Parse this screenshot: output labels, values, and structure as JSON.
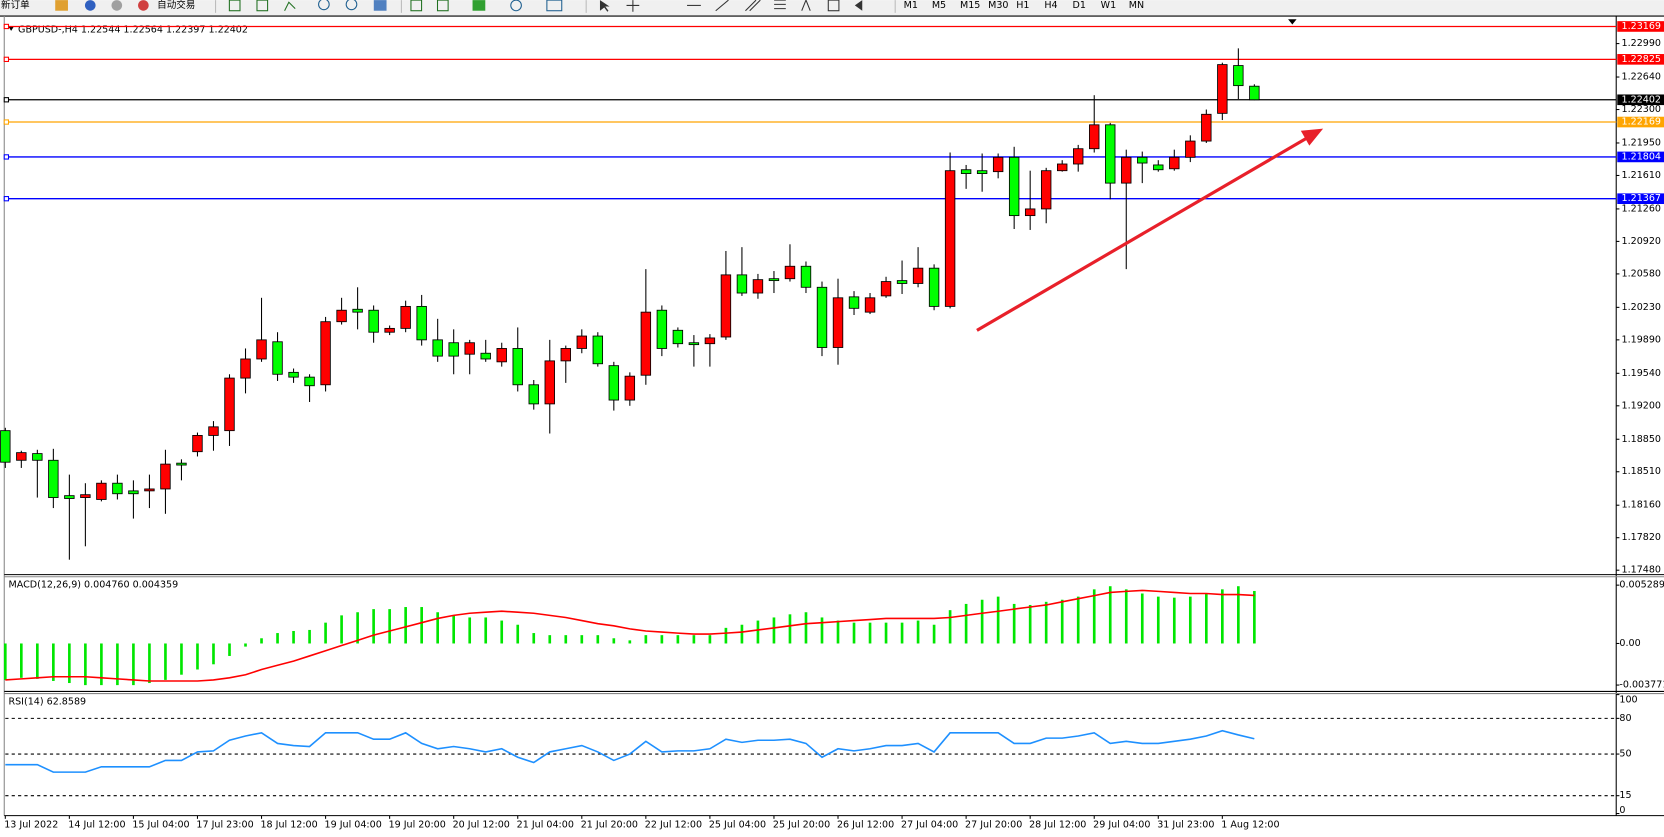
{
  "toolbar": {
    "new_order": "新订单",
    "auto_trading": "自动交易",
    "timeframes": [
      "M1",
      "M5",
      "M15",
      "M30",
      "H1",
      "H4",
      "D1",
      "W1",
      "MN"
    ]
  },
  "chart_data": [
    {
      "type": "candlestick",
      "title": "GBPUSD-,H4  1.22544 1.22564 1.22397 1.22402",
      "categories": [
        "13 Jul 2022",
        null,
        null,
        null,
        "14 Jul 12:00",
        null,
        null,
        null,
        "15 Jul 04:00",
        null,
        null,
        null,
        "17 Jul 23:00",
        null,
        null,
        null,
        "18 Jul 12:00",
        null,
        null,
        null,
        "19 Jul 04:00",
        null,
        null,
        null,
        "19 Jul 20:00",
        null,
        null,
        null,
        "20 Jul 12:00",
        null,
        null,
        null,
        "21 Jul 04:00",
        null,
        null,
        null,
        "21 Jul 20:00",
        null,
        null,
        null,
        "22 Jul 12:00",
        null,
        null,
        null,
        "25 Jul 04:00",
        null,
        null,
        null,
        "25 Jul 20:00",
        null,
        null,
        null,
        "26 Jul 12:00",
        null,
        null,
        null,
        "27 Jul 04:00",
        null,
        null,
        null,
        "27 Jul 20:00",
        null,
        null,
        null,
        "28 Jul 12:00",
        null,
        null,
        null,
        "29 Jul 04:00",
        null,
        null,
        null,
        "31 Jul 23:00",
        null,
        null,
        null,
        "1 Aug 12:00",
        null,
        null
      ],
      "open": [
        1.1894,
        1.1863,
        1.187,
        1.1863,
        1.1826,
        1.1824,
        1.1822,
        1.1839,
        1.1831,
        1.1831,
        1.1833,
        1.186,
        1.1872,
        1.1889,
        1.1894,
        1.1949,
        1.1969,
        1.1987,
        1.1955,
        1.195,
        1.1942,
        1.2008,
        1.2021,
        1.202,
        1.1997,
        1.2001,
        1.2024,
        1.1989,
        1.1986,
        1.1974,
        1.1975,
        1.1966,
        1.198,
        1.1942,
        1.1922,
        1.1967,
        1.198,
        1.1993,
        1.1962,
        1.1926,
        1.1952,
        1.202,
        1.1999,
        1.1986,
        1.1985,
        1.1992,
        1.2057,
        1.2038,
        1.2053,
        1.2053,
        1.2066,
        1.2044,
        1.1981,
        1.2034,
        1.2018,
        1.2035,
        1.2051,
        1.2048,
        1.2064,
        1.2024,
        1.2167,
        1.2166,
        1.2165,
        1.218,
        1.2119,
        1.2126,
        1.2166,
        1.2173,
        1.2189,
        1.2214,
        1.2153,
        1.218,
        1.2172,
        1.2168,
        1.218,
        1.2197,
        1.2226,
        1.2276,
        1.22544
      ],
      "high": [
        1.1897,
        1.1873,
        1.1874,
        1.1875,
        1.1848,
        1.1839,
        1.1842,
        1.1848,
        1.1842,
        1.1848,
        1.1874,
        1.1864,
        1.1892,
        1.1904,
        1.1953,
        1.198,
        1.2033,
        1.1997,
        1.1959,
        1.1953,
        1.2013,
        1.2033,
        1.2044,
        1.2025,
        1.2004,
        1.203,
        1.2036,
        1.2011,
        1.2,
        1.1989,
        1.1989,
        1.1986,
        1.2002,
        1.1947,
        1.1989,
        1.1983,
        1.2,
        1.1997,
        1.1966,
        1.1955,
        1.2063,
        1.2025,
        1.2002,
        1.1994,
        1.1995,
        1.2082,
        1.2086,
        1.2058,
        1.2061,
        1.2089,
        1.2071,
        1.205,
        1.2053,
        1.204,
        1.2038,
        1.2055,
        1.2072,
        1.2086,
        1.2068,
        1.2185,
        1.2172,
        1.2184,
        1.2184,
        1.2191,
        1.2166,
        1.2169,
        1.2177,
        1.2193,
        1.2245,
        1.2216,
        1.2188,
        1.2186,
        1.2177,
        1.2188,
        1.2203,
        1.223,
        1.2279,
        1.2294,
        1.22564
      ],
      "low": [
        1.1855,
        1.1855,
        1.1824,
        1.1813,
        1.1759,
        1.1773,
        1.182,
        1.1822,
        1.1802,
        1.1813,
        1.1807,
        1.1842,
        1.1867,
        1.1873,
        1.1878,
        1.1933,
        1.1966,
        1.1946,
        1.1944,
        1.1924,
        1.1935,
        1.2005,
        1.2,
        1.1986,
        1.1994,
        1.1997,
        1.1983,
        1.1966,
        1.1953,
        1.1953,
        1.1966,
        1.1961,
        1.1935,
        1.1916,
        1.1891,
        1.1944,
        1.1975,
        1.1961,
        1.1915,
        1.192,
        1.1942,
        1.1972,
        1.1981,
        1.1961,
        1.1961,
        1.1989,
        1.2035,
        1.2032,
        1.2038,
        1.205,
        1.2038,
        1.1972,
        1.1963,
        1.2015,
        1.2016,
        1.2033,
        1.2037,
        1.2044,
        1.202,
        1.2022,
        1.2147,
        1.2144,
        1.2158,
        1.2105,
        1.2104,
        1.2111,
        1.2165,
        1.2165,
        1.2185,
        1.2136,
        1.2063,
        1.2153,
        1.2165,
        1.2166,
        1.2175,
        1.2195,
        1.2219,
        1.2241,
        1.22397
      ],
      "close": [
        1.1861,
        1.1871,
        1.1863,
        1.1824,
        1.1823,
        1.1827,
        1.1839,
        1.1828,
        1.1828,
        1.1833,
        1.1859,
        1.1858,
        1.1889,
        1.1898,
        1.1949,
        1.1969,
        1.1989,
        1.1953,
        1.195,
        1.1941,
        1.2008,
        1.202,
        1.2018,
        1.1997,
        1.2001,
        1.2024,
        1.1989,
        1.1972,
        1.1972,
        1.1986,
        1.1969,
        1.198,
        1.1942,
        1.1922,
        1.1967,
        1.198,
        1.1993,
        1.1964,
        1.1926,
        1.1951,
        1.2018,
        1.198,
        1.1985,
        1.1984,
        1.1991,
        1.2057,
        1.2038,
        1.2052,
        1.2051,
        1.2066,
        1.2044,
        1.1981,
        1.2033,
        1.2022,
        1.2033,
        1.205,
        1.2048,
        1.2064,
        1.2024,
        1.2166,
        1.2163,
        1.2163,
        1.218,
        1.2119,
        1.2126,
        1.2166,
        1.2173,
        1.2189,
        1.2214,
        1.2153,
        1.218,
        1.2174,
        1.2167,
        1.218,
        1.2197,
        1.2225,
        1.2277,
        1.2255,
        1.22402
      ],
      "up_color": "#ff0000",
      "down_color": "#00ff00",
      "ylim": [
        1.17445,
        1.23267
      ],
      "yticks": [
        {
          "value": 1.2299,
          "label": "1.22990"
        },
        {
          "value": 1.2264,
          "label": "1.22640"
        },
        {
          "value": 1.223,
          "label": "1.22300"
        },
        {
          "value": 1.2195,
          "label": "1.21950"
        },
        {
          "value": 1.2161,
          "label": "1.21610"
        },
        {
          "value": 1.2126,
          "label": "1.21260"
        },
        {
          "value": 1.2092,
          "label": "1.20920"
        },
        {
          "value": 1.2058,
          "label": "1.20580"
        },
        {
          "value": 1.2023,
          "label": "1.20230"
        },
        {
          "value": 1.1989,
          "label": "1.19890"
        },
        {
          "value": 1.1954,
          "label": "1.19540"
        },
        {
          "value": 1.192,
          "label": "1.19200"
        },
        {
          "value": 1.1885,
          "label": "1.18850"
        },
        {
          "value": 1.1851,
          "label": "1.18510"
        },
        {
          "value": 1.1816,
          "label": "1.18160"
        },
        {
          "value": 1.1782,
          "label": "1.17820"
        },
        {
          "value": 1.1748,
          "label": "1.17480"
        }
      ],
      "levels": [
        {
          "value": 1.23169,
          "color": "#ff0000"
        },
        {
          "value": 1.22825,
          "color": "#ff0000"
        },
        {
          "value": 1.22402,
          "color": "#000000"
        },
        {
          "value": 1.22169,
          "color": "#ffa500"
        },
        {
          "value": 1.21804,
          "color": "#0000ff"
        },
        {
          "value": 1.21367,
          "color": "#0000ff"
        }
      ]
    },
    {
      "type": "macd",
      "title": "MACD(12,26,9) 0.004760 0.004359",
      "series": [
        {
          "type": "bar",
          "color": "#00e600",
          "values": [
            -0.003304,
            -0.003115,
            -0.00321,
            -0.003398,
            -0.003587,
            -0.003776,
            -0.003776,
            -0.003776,
            -0.003776,
            -0.003587,
            -0.003304,
            -0.002832,
            -0.00236,
            -0.001888,
            -0.001133,
            -0.000283,
            0.000472,
            0.000944,
            0.001133,
            0.001227,
            0.001888,
            0.002549,
            0.002832,
            0.003115,
            0.003115,
            0.003304,
            0.003304,
            0.002832,
            0.002549,
            0.00236,
            0.00236,
            0.002077,
            0.001699,
            0.000944,
            0.000755,
            0.000755,
            0.000755,
            0.000755,
            0.000472,
            0.000283,
            0.000755,
            0.000755,
            0.000755,
            0.000755,
            0.000755,
            0.001416,
            0.001699,
            0.002077,
            0.00236,
            0.002643,
            0.002832,
            0.00236,
            0.002077,
            0.001888,
            0.001888,
            0.001888,
            0.001888,
            0.002077,
            0.001699,
            0.003021,
            0.003587,
            0.003965,
            0.004248,
            0.003587,
            0.003493,
            0.003776,
            0.003965,
            0.004248,
            0.004909,
            0.005192,
            0.004909,
            0.004531,
            0.004248,
            0.004154,
            0.004248,
            0.004531,
            0.004909,
            0.005192,
            0.00476
          ]
        },
        {
          "type": "line",
          "color": "#ff0000",
          "values": [
            -0.003304,
            -0.00321,
            -0.003115,
            -0.003021,
            -0.003021,
            -0.003021,
            -0.003115,
            -0.00321,
            -0.003304,
            -0.003398,
            -0.003398,
            -0.003398,
            -0.003398,
            -0.003304,
            -0.003115,
            -0.002832,
            -0.00236,
            -0.001982,
            -0.001605,
            -0.001133,
            -0.000661,
            -0.000189,
            0.000283,
            0.000755,
            0.001133,
            0.00151,
            0.001888,
            0.002266,
            0.002549,
            0.002738,
            0.002832,
            0.002926,
            0.002832,
            0.002738,
            0.002549,
            0.00236,
            0.002077,
            0.001794,
            0.001605,
            0.001322,
            0.001133,
            0.001038,
            0.000944,
            0.00085,
            0.00085,
            0.000944,
            0.001038,
            0.001227,
            0.001416,
            0.001605,
            0.001794,
            0.001888,
            0.001982,
            0.002077,
            0.002171,
            0.002266,
            0.002266,
            0.002266,
            0.002266,
            0.00236,
            0.002549,
            0.002738,
            0.002926,
            0.003115,
            0.003304,
            0.003493,
            0.003776,
            0.004059,
            0.004342,
            0.004626,
            0.00472,
            0.004814,
            0.00472,
            0.004626,
            0.004531,
            0.004531,
            0.004437,
            0.004437,
            0.004359
          ]
        }
      ],
      "ylim": [
        -0.00425,
        0.00586
      ],
      "yticks": [
        0.005289,
        {
          "value": 0,
          "label": "0.00"
        },
        -0.003771
      ]
    },
    {
      "type": "rsi",
      "title": "RSI(14) 62.8589",
      "series": [
        {
          "type": "line",
          "color": "#1e90ff",
          "values": [
            41.1,
            41.1,
            41.1,
            34.8,
            34.8,
            34.8,
            39.3,
            39.3,
            39.3,
            39.3,
            44.6,
            44.6,
            51.8,
            52.7,
            61.6,
            65.2,
            67.9,
            58.9,
            57.1,
            56.3,
            67.9,
            67.9,
            67.9,
            62.5,
            62.5,
            67.9,
            58.9,
            54.5,
            56.3,
            54.5,
            51.8,
            54.5,
            47.3,
            42.9,
            51.8,
            54.5,
            57.1,
            51.8,
            44.6,
            50,
            60.7,
            51.8,
            52.7,
            52.7,
            54.5,
            62.5,
            59.8,
            61.6,
            61.6,
            62.5,
            58.9,
            47.3,
            54.5,
            52.7,
            54.5,
            57.1,
            57.1,
            58.9,
            51.8,
            67.9,
            67.9,
            67.9,
            67.9,
            58.9,
            58.9,
            63.4,
            63.4,
            65.2,
            67.9,
            58.9,
            60.7,
            58.9,
            58.9,
            60.7,
            62.5,
            65.2,
            69.6,
            66.1,
            62.8589
          ]
        }
      ],
      "ylim": [
        0,
        100
      ],
      "yticks": [
        100,
        80,
        50,
        15,
        0
      ],
      "levels": [
        80,
        50,
        15
      ]
    }
  ]
}
